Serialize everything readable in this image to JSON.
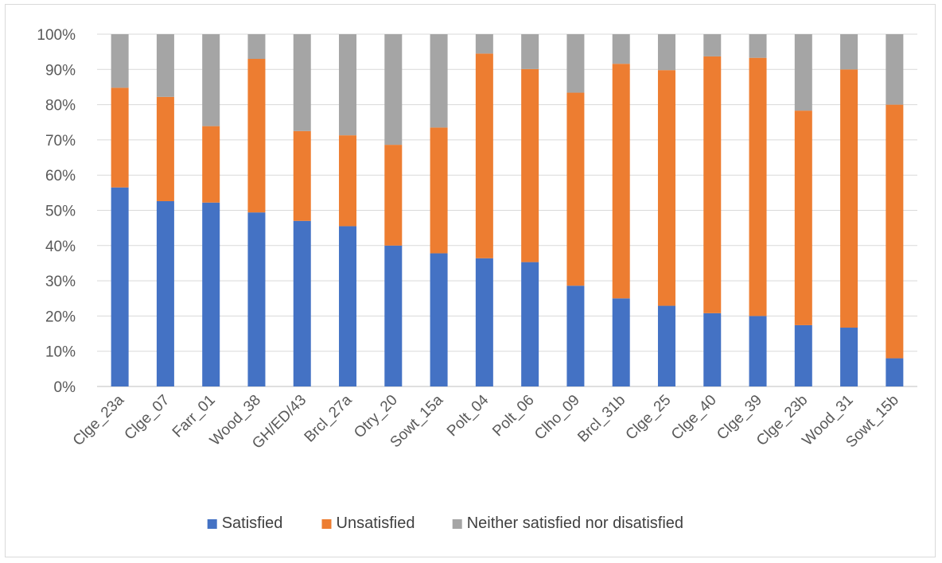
{
  "chart_data": {
    "type": "bar",
    "stacked": true,
    "percent": true,
    "title": "",
    "xlabel": "",
    "ylabel": "",
    "ylim": [
      0,
      100
    ],
    "yticks": [
      "0%",
      "10%",
      "20%",
      "30%",
      "40%",
      "50%",
      "60%",
      "70%",
      "80%",
      "90%",
      "100%"
    ],
    "grid": true,
    "legend_position": "bottom",
    "categories": [
      "Clge_23a",
      "Clge_07",
      "Farr_01",
      "Wood_38",
      "GH/ED/43",
      "Brcl_27a",
      "Otry_20",
      "Sowt_15a",
      "Polt_04",
      "Polt_06",
      "Clho_09",
      "Brcl_31b",
      "Clge_25",
      "Clge_40",
      "Clge_39",
      "Clge_23b",
      "Wood_31",
      "Sowt_15b"
    ],
    "series": [
      {
        "name": "Satisfied",
        "color": "#4472c4",
        "values": [
          56.5,
          52.6,
          52.2,
          49.4,
          47.0,
          45.5,
          40.0,
          37.8,
          36.4,
          35.3,
          28.6,
          25.0,
          22.9,
          20.8,
          20.0,
          17.4,
          16.7,
          8.0
        ]
      },
      {
        "name": "Unsatisfied",
        "color": "#ed7d31",
        "values": [
          28.3,
          29.6,
          21.7,
          43.6,
          25.5,
          25.8,
          28.6,
          35.7,
          58.1,
          54.8,
          54.8,
          66.6,
          66.9,
          72.9,
          73.3,
          60.9,
          73.3,
          72.0
        ]
      },
      {
        "name": "Neither satisfied nor disatisfied",
        "color": "#a5a5a5",
        "values": [
          15.2,
          17.8,
          26.1,
          7.0,
          27.5,
          28.7,
          31.4,
          26.5,
          5.5,
          9.9,
          16.6,
          8.4,
          10.2,
          6.3,
          6.7,
          21.7,
          10.0,
          20.0
        ]
      }
    ]
  }
}
